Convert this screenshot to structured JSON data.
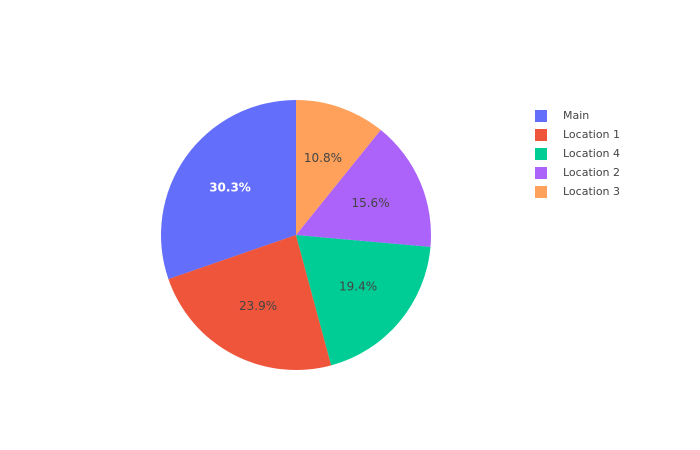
{
  "chart_data": {
    "type": "pie",
    "categories": [
      "Main",
      "Location 1",
      "Location 4",
      "Location 2",
      "Location 3"
    ],
    "values": [
      30.3,
      23.9,
      19.4,
      15.6,
      10.8
    ],
    "labels": [
      "30.3%",
      "23.9%",
      "19.4%",
      "15.6%",
      "10.8%"
    ],
    "colors": [
      "#636efa",
      "#ef553b",
      "#00cc96",
      "#ab63fa",
      "#ffa15a"
    ],
    "label_colors": [
      "#ffffff",
      "#444444",
      "#444444",
      "#444444",
      "#444444"
    ],
    "label_weights": [
      "bold",
      "normal",
      "normal",
      "normal",
      "normal"
    ],
    "direction": "counterclockwise",
    "legend": {
      "position": "top-right",
      "entries": [
        {
          "label": "Main",
          "color": "#636efa"
        },
        {
          "label": "Location 1",
          "color": "#ef553b"
        },
        {
          "label": "Location 4",
          "color": "#00cc96"
        },
        {
          "label": "Location 2",
          "color": "#ab63fa"
        },
        {
          "label": "Location 3",
          "color": "#ffa15a"
        }
      ]
    }
  }
}
